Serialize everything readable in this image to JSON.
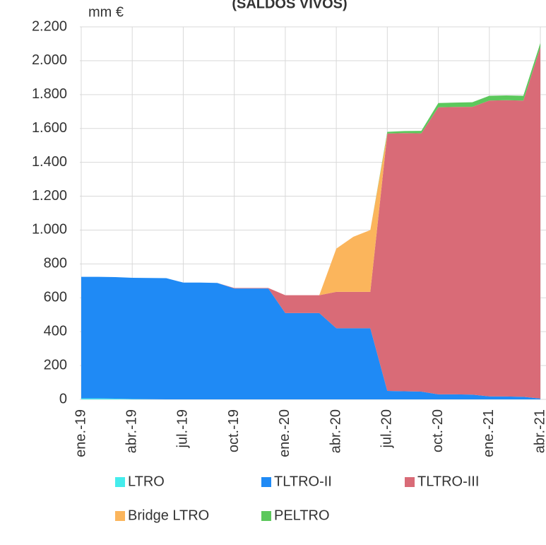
{
  "chart_data": {
    "type": "stacked-area",
    "title": "(SALDOS VIVOS)",
    "y_label": "mm €",
    "categories": [
      "ene.-19",
      null,
      null,
      "abr.-19",
      null,
      null,
      "jul.-19",
      null,
      null,
      "oct.-19",
      null,
      null,
      "ene.-20",
      null,
      null,
      "abr.-20",
      null,
      null,
      "jul.-20",
      null,
      null,
      "oct.-20",
      null,
      null,
      "ene.-21",
      null,
      null,
      "abr.-21"
    ],
    "series": [
      {
        "name": "LTRO",
        "color": "#45ecec",
        "values": [
          6,
          6,
          4,
          2,
          1,
          0,
          0,
          0,
          0,
          0,
          0,
          0,
          0,
          0,
          0,
          0,
          0,
          0,
          0,
          0,
          0,
          0,
          0,
          0,
          0,
          0,
          0,
          0
        ]
      },
      {
        "name": "TLTRO-II",
        "color": "#1f8af5",
        "values": [
          718,
          718,
          718,
          716,
          716,
          716,
          690,
          690,
          688,
          655,
          655,
          655,
          510,
          510,
          510,
          420,
          420,
          420,
          50,
          48,
          46,
          30,
          30,
          28,
          18,
          17,
          15,
          5
        ]
      },
      {
        "name": "TLTRO-III",
        "color": "#d96b77",
        "values": [
          0,
          0,
          0,
          0,
          0,
          0,
          0,
          0,
          0,
          3,
          3,
          3,
          105,
          105,
          105,
          215,
          215,
          215,
          1520,
          1525,
          1525,
          1695,
          1697,
          1700,
          1747,
          1750,
          1750,
          2075
        ]
      },
      {
        "name": "Bridge LTRO",
        "color": "#fbb55c",
        "values": [
          0,
          0,
          0,
          0,
          0,
          0,
          0,
          0,
          0,
          0,
          0,
          0,
          0,
          0,
          0,
          255,
          325,
          365,
          0,
          0,
          0,
          0,
          0,
          0,
          0,
          0,
          0,
          0
        ]
      },
      {
        "name": "PELTRO",
        "color": "#5cc85c",
        "values": [
          0,
          0,
          0,
          0,
          0,
          0,
          0,
          0,
          0,
          0,
          0,
          0,
          0,
          0,
          0,
          0,
          0,
          0,
          10,
          12,
          15,
          25,
          26,
          27,
          28,
          28,
          28,
          25
        ]
      }
    ],
    "ylim": [
      0,
      2200
    ],
    "yticks": [
      0,
      200,
      400,
      600,
      800,
      {
        "value": 1000,
        "label": "1.000"
      },
      {
        "value": 1200,
        "label": "1.200"
      },
      {
        "value": 1400,
        "label": "1.400"
      },
      {
        "value": 1600,
        "label": "1.600"
      },
      {
        "value": 1800,
        "label": "1.800"
      },
      {
        "value": 2000,
        "label": "2.000"
      },
      {
        "value": 2200,
        "label": "2.200"
      }
    ],
    "grid": true
  }
}
